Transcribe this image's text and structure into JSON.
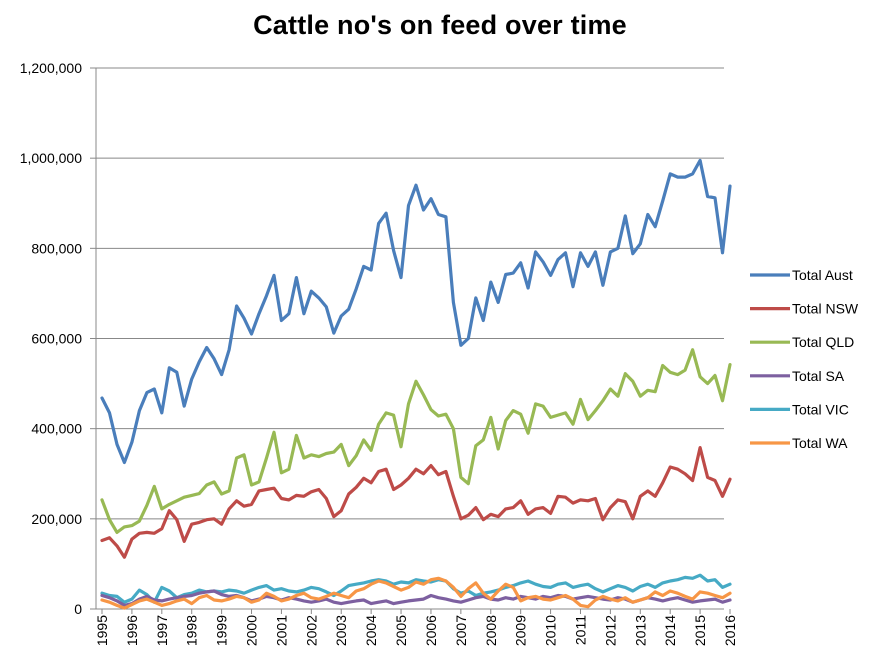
{
  "chart_data": {
    "type": "line",
    "title": "Cattle no's on feed over time",
    "xlabel": "",
    "ylabel": "",
    "ylim": [
      0,
      1200000
    ],
    "yticks": [
      0,
      200000,
      400000,
      600000,
      800000,
      1000000,
      1200000
    ],
    "ytick_labels": [
      "0",
      "200,000",
      "400,000",
      "600,000",
      "800,000",
      "1,000,000",
      "1,200,000"
    ],
    "xlim": [
      1995,
      2016
    ],
    "x_tick_labels": [
      "1995",
      "1996",
      "1997",
      "1998",
      "1999",
      "2000",
      "2001",
      "2002",
      "2003",
      "2004",
      "2005",
      "2006",
      "2007",
      "2008",
      "2009",
      "2010",
      "2011",
      "2012",
      "2013",
      "2014",
      "2015",
      "2016"
    ],
    "grid": "horizontal",
    "legend": "right",
    "x": [
      1995.0,
      1995.25,
      1995.5,
      1995.75,
      1996.0,
      1996.25,
      1996.5,
      1996.75,
      1997.0,
      1997.25,
      1997.5,
      1997.75,
      1998.0,
      1998.25,
      1998.5,
      1998.75,
      1999.0,
      1999.25,
      1999.5,
      1999.75,
      2000.0,
      2000.25,
      2000.5,
      2000.75,
      2001.0,
      2001.25,
      2001.5,
      2001.75,
      2002.0,
      2002.25,
      2002.5,
      2002.75,
      2003.0,
      2003.25,
      2003.5,
      2003.75,
      2004.0,
      2004.25,
      2004.5,
      2004.75,
      2005.0,
      2005.25,
      2005.5,
      2005.75,
      2006.0,
      2006.25,
      2006.5,
      2006.75,
      2007.0,
      2007.25,
      2007.5,
      2007.75,
      2008.0,
      2008.25,
      2008.5,
      2008.75,
      2009.0,
      2009.25,
      2009.5,
      2009.75,
      2010.0,
      2010.25,
      2010.5,
      2010.75,
      2011.0,
      2011.25,
      2011.5,
      2011.75,
      2012.0,
      2012.25,
      2012.5,
      2012.75,
      2013.0,
      2013.25,
      2013.5,
      2013.75,
      2014.0,
      2014.25,
      2014.5,
      2014.75,
      2015.0,
      2015.25,
      2015.5,
      2015.75,
      2016.0
    ],
    "series": [
      {
        "name": "Total Aust",
        "color": "#4A7EBB",
        "values": [
          468000,
          435000,
          365000,
          325000,
          370000,
          440000,
          480000,
          488000,
          435000,
          535000,
          525000,
          450000,
          510000,
          548000,
          580000,
          555000,
          520000,
          575000,
          672000,
          645000,
          610000,
          655000,
          695000,
          740000,
          640000,
          655000,
          735000,
          655000,
          705000,
          690000,
          670000,
          612000,
          650000,
          665000,
          710000,
          760000,
          752000,
          855000,
          878000,
          795000,
          735000,
          895000,
          940000,
          885000,
          910000,
          875000,
          870000,
          680000,
          585000,
          600000,
          690000,
          640000,
          725000,
          680000,
          742000,
          745000,
          768000,
          712000,
          792000,
          770000,
          740000,
          775000,
          790000,
          715000,
          790000,
          760000,
          792000,
          718000,
          792000,
          800000,
          872000,
          788000,
          810000,
          875000,
          848000,
          905000,
          965000,
          958000,
          958000,
          965000,
          995000,
          915000,
          912000,
          790000,
          938000
        ]
      },
      {
        "name": "Total NSW",
        "color": "#BE4B48",
        "values": [
          152000,
          158000,
          140000,
          115000,
          155000,
          168000,
          170000,
          168000,
          178000,
          218000,
          198000,
          150000,
          188000,
          192000,
          198000,
          200000,
          188000,
          222000,
          240000,
          228000,
          232000,
          262000,
          265000,
          268000,
          245000,
          242000,
          252000,
          250000,
          260000,
          265000,
          245000,
          205000,
          218000,
          255000,
          270000,
          290000,
          280000,
          305000,
          310000,
          265000,
          275000,
          290000,
          310000,
          300000,
          318000,
          298000,
          305000,
          250000,
          200000,
          208000,
          225000,
          198000,
          210000,
          205000,
          222000,
          225000,
          240000,
          210000,
          222000,
          225000,
          212000,
          250000,
          248000,
          235000,
          242000,
          240000,
          245000,
          198000,
          225000,
          242000,
          238000,
          200000,
          250000,
          262000,
          250000,
          280000,
          315000,
          310000,
          300000,
          285000,
          358000,
          292000,
          285000,
          250000,
          288000
        ]
      },
      {
        "name": "Total QLD",
        "color": "#98B954",
        "values": [
          242000,
          198000,
          170000,
          182000,
          185000,
          195000,
          230000,
          272000,
          222000,
          232000,
          240000,
          248000,
          252000,
          256000,
          275000,
          282000,
          255000,
          262000,
          335000,
          342000,
          275000,
          282000,
          335000,
          392000,
          302000,
          310000,
          385000,
          335000,
          342000,
          338000,
          345000,
          348000,
          365000,
          318000,
          340000,
          375000,
          352000,
          410000,
          435000,
          430000,
          360000,
          455000,
          505000,
          475000,
          442000,
          428000,
          432000,
          400000,
          292000,
          278000,
          362000,
          375000,
          425000,
          355000,
          418000,
          440000,
          432000,
          390000,
          455000,
          450000,
          425000,
          430000,
          435000,
          410000,
          465000,
          420000,
          440000,
          462000,
          488000,
          472000,
          522000,
          505000,
          472000,
          485000,
          482000,
          540000,
          525000,
          520000,
          530000,
          575000,
          515000,
          500000,
          518000,
          462000,
          542000
        ]
      },
      {
        "name": "Total SA",
        "color": "#7D60A0",
        "values": [
          30000,
          25000,
          18000,
          8000,
          12000,
          22000,
          28000,
          20000,
          18000,
          22000,
          25000,
          28000,
          30000,
          35000,
          38000,
          40000,
          32000,
          28000,
          30000,
          25000,
          18000,
          22000,
          28000,
          25000,
          20000,
          25000,
          22000,
          18000,
          15000,
          18000,
          22000,
          15000,
          12000,
          15000,
          18000,
          20000,
          12000,
          15000,
          18000,
          12000,
          15000,
          18000,
          20000,
          22000,
          30000,
          25000,
          22000,
          18000,
          15000,
          20000,
          25000,
          28000,
          22000,
          20000,
          25000,
          22000,
          28000,
          25000,
          22000,
          28000,
          25000,
          30000,
          28000,
          22000,
          25000,
          28000,
          25000,
          22000,
          20000,
          25000,
          22000,
          15000,
          20000,
          25000,
          22000,
          18000,
          22000,
          25000,
          20000,
          15000,
          18000,
          20000,
          22000,
          15000,
          20000
        ]
      },
      {
        "name": "Total VIC",
        "color": "#46AAC5",
        "values": [
          35000,
          30000,
          28000,
          15000,
          22000,
          42000,
          32000,
          15000,
          48000,
          40000,
          25000,
          32000,
          35000,
          42000,
          38000,
          40000,
          38000,
          42000,
          40000,
          35000,
          42000,
          48000,
          52000,
          42000,
          45000,
          40000,
          38000,
          42000,
          48000,
          45000,
          38000,
          30000,
          40000,
          52000,
          55000,
          58000,
          62000,
          65000,
          62000,
          55000,
          60000,
          58000,
          65000,
          62000,
          60000,
          65000,
          62000,
          45000,
          35000,
          40000,
          30000,
          35000,
          38000,
          42000,
          48000,
          52000,
          58000,
          62000,
          55000,
          50000,
          48000,
          55000,
          58000,
          48000,
          52000,
          55000,
          45000,
          38000,
          45000,
          52000,
          48000,
          40000,
          50000,
          55000,
          48000,
          58000,
          62000,
          65000,
          70000,
          68000,
          75000,
          62000,
          65000,
          48000,
          55000
        ]
      },
      {
        "name": "Total WA",
        "color": "#F79646",
        "values": [
          20000,
          15000,
          8000,
          2000,
          10000,
          18000,
          22000,
          15000,
          8000,
          12000,
          18000,
          22000,
          12000,
          25000,
          30000,
          20000,
          18000,
          22000,
          28000,
          25000,
          15000,
          20000,
          35000,
          28000,
          18000,
          22000,
          30000,
          35000,
          25000,
          22000,
          28000,
          35000,
          30000,
          25000,
          40000,
          45000,
          55000,
          62000,
          58000,
          50000,
          42000,
          48000,
          60000,
          55000,
          65000,
          68000,
          62000,
          48000,
          28000,
          45000,
          58000,
          35000,
          22000,
          40000,
          55000,
          48000,
          18000,
          25000,
          28000,
          22000,
          20000,
          25000,
          30000,
          22000,
          8000,
          5000,
          20000,
          28000,
          22000,
          18000,
          25000,
          15000,
          20000,
          25000,
          38000,
          30000,
          40000,
          35000,
          28000,
          22000,
          38000,
          35000,
          30000,
          25000,
          35000
        ]
      }
    ]
  }
}
